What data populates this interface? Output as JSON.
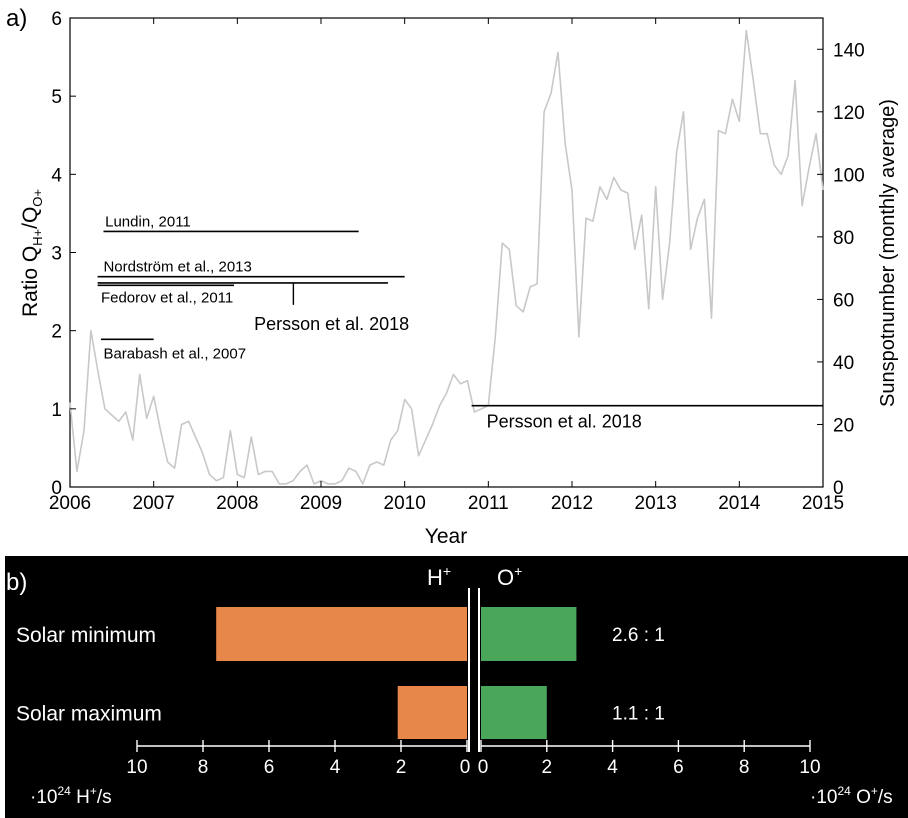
{
  "chart_data": [
    {
      "panel_label": "a)",
      "type": "line",
      "xlabel": "Year",
      "ylabel_main": "Ratio Q",
      "ylabel_sub1": "H+",
      "ylabel_sep": "/Q",
      "ylabel_sub2": "O+",
      "y2label": "Sunspotnumber (monthly average)",
      "xlim": [
        2006,
        2015
      ],
      "ylim": [
        0,
        6
      ],
      "y2lim": [
        0,
        150
      ],
      "xticks": [
        "2006",
        "2007",
        "2008",
        "2009",
        "2010",
        "2011",
        "2012",
        "2013",
        "2014",
        "2015"
      ],
      "yticks": [
        "0",
        "1",
        "2",
        "3",
        "4",
        "5",
        "6"
      ],
      "y2ticks": [
        "0",
        "20",
        "40",
        "60",
        "80",
        "100",
        "120",
        "140"
      ],
      "series": [
        {
          "axis": "right",
          "color": "#c8c8c8",
          "x": [
            2006.0,
            2006.083,
            2006.167,
            2006.25,
            2006.333,
            2006.417,
            2006.5,
            2006.583,
            2006.667,
            2006.75,
            2006.833,
            2006.917,
            2007.0,
            2007.083,
            2007.167,
            2007.25,
            2007.333,
            2007.417,
            2007.5,
            2007.583,
            2007.667,
            2007.75,
            2007.833,
            2007.917,
            2008.0,
            2008.083,
            2008.167,
            2008.25,
            2008.333,
            2008.417,
            2008.5,
            2008.583,
            2008.667,
            2008.75,
            2008.833,
            2008.917,
            2009.0,
            2009.083,
            2009.167,
            2009.25,
            2009.333,
            2009.417,
            2009.5,
            2009.583,
            2009.667,
            2009.75,
            2009.833,
            2009.917,
            2010.0,
            2010.083,
            2010.167,
            2010.25,
            2010.333,
            2010.417,
            2010.5,
            2010.583,
            2010.667,
            2010.75,
            2010.833,
            2010.917,
            2011.0,
            2011.083,
            2011.167,
            2011.25,
            2011.333,
            2011.417,
            2011.5,
            2011.583,
            2011.667,
            2011.75,
            2011.833,
            2011.917,
            2012.0,
            2012.083,
            2012.167,
            2012.25,
            2012.333,
            2012.417,
            2012.5,
            2012.583,
            2012.667,
            2012.75,
            2012.833,
            2012.917,
            2013.0,
            2013.083,
            2013.167,
            2013.25,
            2013.333,
            2013.417,
            2013.5,
            2013.583,
            2013.667,
            2013.75,
            2013.833,
            2013.917,
            2014.0,
            2014.083,
            2014.167,
            2014.25,
            2014.333,
            2014.417,
            2014.5,
            2014.583,
            2014.667,
            2014.75,
            2014.833,
            2014.917,
            2015.0
          ],
          "y": [
            27,
            5,
            18,
            50,
            37,
            25,
            23,
            21,
            24,
            15,
            36,
            22,
            29,
            18,
            8,
            6,
            20,
            21,
            16,
            11,
            4,
            2,
            3,
            18,
            4,
            3,
            16,
            4,
            5,
            5,
            1,
            1,
            2,
            5,
            7,
            1,
            2,
            1,
            1,
            2,
            6,
            5,
            1,
            7,
            8,
            7,
            15,
            18,
            28,
            25,
            10,
            15,
            20,
            26,
            30,
            36,
            33,
            34,
            24,
            25,
            26,
            48,
            78,
            76,
            58,
            56,
            64,
            65,
            120,
            126,
            139,
            110,
            95,
            48,
            86,
            85,
            96,
            92,
            99,
            95,
            94,
            76,
            87,
            57,
            96,
            60,
            78,
            107,
            120,
            76,
            86,
            92,
            54,
            114,
            113,
            124,
            117,
            146,
            130,
            113,
            113,
            103,
            100,
            106,
            130,
            90,
            102,
            113,
            95
          ]
        }
      ],
      "reference_lines": [
        {
          "label": "Lundin, 2011",
          "x_start": 2006.4,
          "x_end": 2009.45,
          "value": 3.27
        },
        {
          "label": "Nordström et al., 2013",
          "x_start": 2006.33,
          "x_end": 2010.0,
          "value": 2.69
        },
        {
          "label": "Fedorov et al., 2011",
          "x_start": 2006.33,
          "x_end": 2007.96,
          "value": 2.58
        },
        {
          "label": "Persson et al. 2018",
          "x_start": 2006.33,
          "x_end": 2009.8,
          "value": 2.61,
          "tick_x": 2008.67,
          "tick_to": 2.33
        },
        {
          "label": "Barabash et al., 2007",
          "x_start": 2006.37,
          "x_end": 2007.0,
          "value": 1.89
        },
        {
          "label": "Persson et al. 2018",
          "x_start": 2010.8,
          "x_end": 2015.0,
          "value": 1.04
        }
      ]
    },
    {
      "panel_label": "b)",
      "type": "bar",
      "orientation": "horizontal",
      "background": "#000000",
      "left_header": "H",
      "left_header_sup": "+",
      "right_header": "O",
      "right_header_sup": "+",
      "categories": [
        "Solar minimum",
        "Solar maximum"
      ],
      "series": [
        {
          "color": "#e8874a",
          "values": [
            7.6,
            2.1
          ]
        },
        {
          "color": "#4aa75a",
          "values": [
            2.9,
            2.0
          ]
        }
      ],
      "ratio_labels": [
        "2.6 : 1",
        "1.1 : 1"
      ],
      "xlim_left": [
        10,
        0
      ],
      "xlim_right": [
        0,
        10
      ],
      "left_ticks": [
        "10",
        "8",
        "6",
        "4",
        "2",
        "0"
      ],
      "right_ticks": [
        "0",
        "2",
        "4",
        "6",
        "8",
        "10"
      ],
      "left_unit_pre": "·10",
      "left_unit_sup": "24",
      "left_unit_post": " H",
      "left_unit_sup2": "+",
      "left_unit_tail": "/s",
      "right_unit_pre": "·10",
      "right_unit_sup": "24",
      "right_unit_post": " O",
      "right_unit_sup2": "+",
      "right_unit_tail": "/s"
    }
  ]
}
